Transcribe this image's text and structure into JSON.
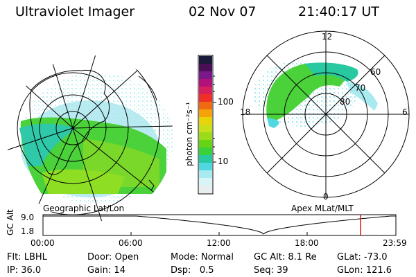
{
  "header": {
    "instrument": "Ultraviolet Imager",
    "date": "02 Nov 07",
    "time": "21:40:17 UT"
  },
  "colorbar": {
    "unit_label": "photon cm⁻²s⁻¹",
    "ticks": [
      "100",
      "10"
    ],
    "colors": [
      "#1a1a3a",
      "#4b0f55",
      "#7a1a8a",
      "#b0127a",
      "#d8205c",
      "#f03028",
      "#f06a14",
      "#f4a40a",
      "#e8d40a",
      "#c8e01a",
      "#9adc1a",
      "#64d414",
      "#3ad23a",
      "#28c8a0",
      "#50d8e0",
      "#a8eaf0",
      "#d8f4f6",
      "#e8eeee"
    ]
  },
  "left_map": {
    "label": "Geographic Lat/Lon"
  },
  "right_map": {
    "label": "Apex MLat/MLT",
    "mlt_labels": [
      "12",
      "18",
      "6",
      "0"
    ],
    "lat_labels": [
      "60",
      "70",
      "80"
    ]
  },
  "timeline": {
    "ylabel": "GC Alt",
    "yticks": [
      "9.0",
      "1.8"
    ],
    "xticks": [
      "00:00",
      "06:00",
      "12:00",
      "18:00",
      "23:59"
    ],
    "marker_color": "#e01010"
  },
  "status": {
    "row1": [
      {
        "key": "Flt:",
        "value": "LBHL"
      },
      {
        "key": "Door:",
        "value": "Open"
      },
      {
        "key": "Mode:",
        "value": "Normal"
      },
      {
        "key": "GC Alt:",
        "value": "8.1 Re"
      },
      {
        "key": "GLat:",
        "value": "-73.0"
      }
    ],
    "row2": [
      {
        "key": "IP:",
        "value": "36.0"
      },
      {
        "key": "Gain:",
        "value": "14"
      },
      {
        "key": "Dsp:",
        "value": "0.5"
      },
      {
        "key": "Seq:",
        "value": "39"
      },
      {
        "key": "GLon:",
        "value": "121.6"
      }
    ]
  }
}
